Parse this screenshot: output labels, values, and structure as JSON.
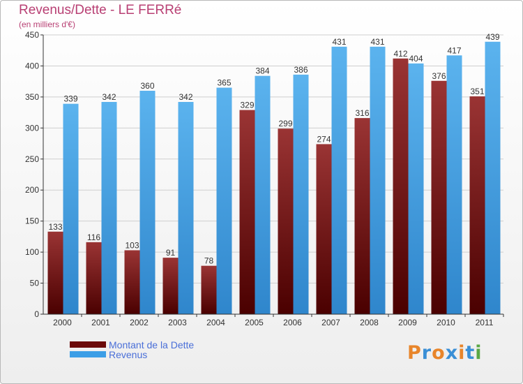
{
  "header": {
    "title": "Revenus/Dette - LE FERRé",
    "subtitle": "(en milliers d'€)"
  },
  "legend": {
    "items": [
      {
        "label": "Montant de la Dette",
        "color": "#6b0a0a"
      },
      {
        "label": "Revenus",
        "color": "#3c9ee6"
      }
    ]
  },
  "logo": {
    "text": "Proxiti"
  },
  "colors": {
    "dette_top": "#9a3434",
    "dette_bottom": "#4a0000",
    "revenus_top": "#5bb3ee",
    "revenus_bottom": "#2f86cc",
    "title": "#b83f73",
    "grid": "#cfcfcf"
  },
  "chart_data": {
    "type": "bar",
    "categories": [
      "2000",
      "2001",
      "2002",
      "2003",
      "2004",
      "2005",
      "2006",
      "2007",
      "2008",
      "2009",
      "2010",
      "2011"
    ],
    "series": [
      {
        "name": "Montant de la Dette",
        "values": [
          133,
          116,
          103,
          91,
          78,
          329,
          299,
          274,
          316,
          412,
          376,
          351
        ]
      },
      {
        "name": "Revenus",
        "values": [
          339,
          342,
          360,
          342,
          365,
          384,
          386,
          431,
          431,
          404,
          417,
          439
        ]
      }
    ],
    "ylim": [
      0,
      450
    ],
    "yticks": [
      0,
      50,
      100,
      150,
      200,
      250,
      300,
      350,
      400,
      450
    ],
    "grid": true,
    "data_labels": true,
    "legend_position": "bottom-left"
  }
}
